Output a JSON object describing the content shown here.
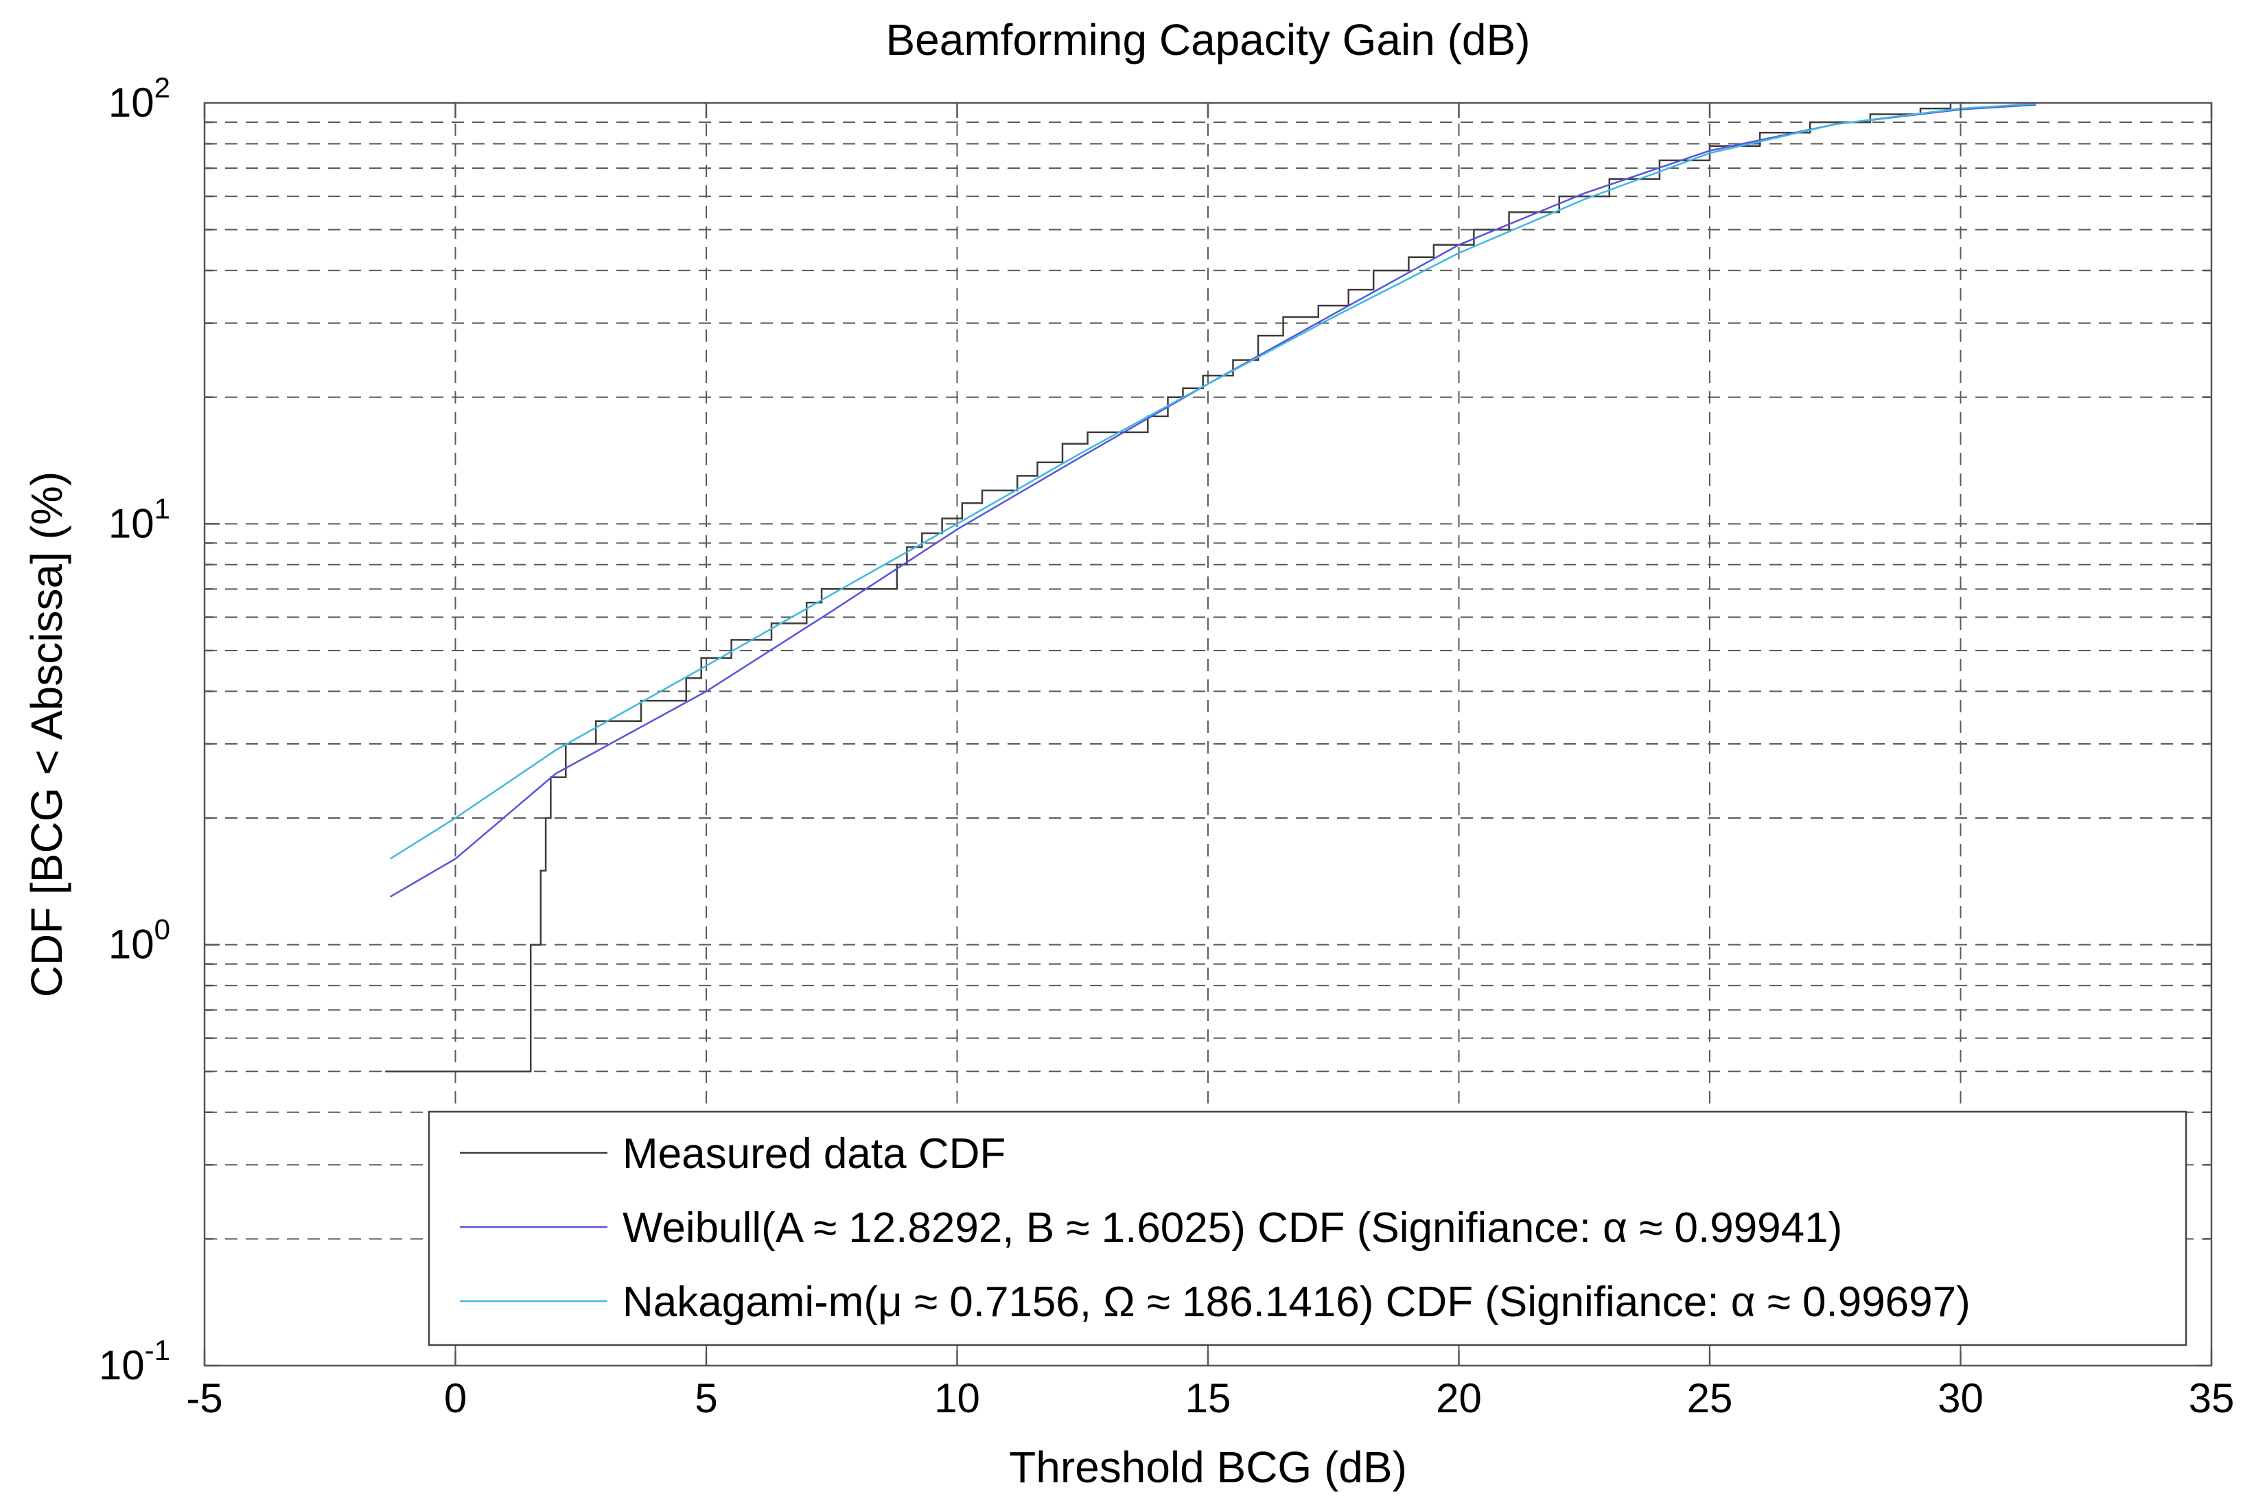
{
  "chart_data": {
    "type": "line",
    "title": "Beamforming Capacity Gain (dB)",
    "xlabel": "Threshold BCG (dB)",
    "ylabel": "CDF [BCG < Abscissa] (%)",
    "xlim": [
      -5,
      35
    ],
    "ylim": [
      0.1,
      100
    ],
    "yscale": "log",
    "grid": true,
    "xticks": [
      -5,
      0,
      5,
      10,
      15,
      20,
      25,
      30,
      35
    ],
    "xtick_labels": [
      "-5",
      "0",
      "5",
      "10",
      "15",
      "20",
      "25",
      "30",
      "35"
    ],
    "yticks": [
      {
        "value": 0.1,
        "base": "10",
        "exp": "-1"
      },
      {
        "value": 1,
        "base": "10",
        "exp": "0"
      },
      {
        "value": 10,
        "base": "10",
        "exp": "1"
      },
      {
        "value": 100,
        "base": "10",
        "exp": "2"
      }
    ],
    "legend_position": "bottom-right",
    "series": [
      {
        "name": "Measured data CDF",
        "color": "#3c3c3c",
        "step": true,
        "points": [
          [
            -1.4,
            0.5
          ],
          [
            1.5,
            0.5
          ],
          [
            1.5,
            1.0
          ],
          [
            1.7,
            1.0
          ],
          [
            1.7,
            1.5
          ],
          [
            1.8,
            1.5
          ],
          [
            1.8,
            2.0
          ],
          [
            1.9,
            2.0
          ],
          [
            1.9,
            2.5
          ],
          [
            2.2,
            2.5
          ],
          [
            2.2,
            3.0
          ],
          [
            2.8,
            3.0
          ],
          [
            2.8,
            3.4
          ],
          [
            3.7,
            3.4
          ],
          [
            3.7,
            3.8
          ],
          [
            4.6,
            3.8
          ],
          [
            4.6,
            4.3
          ],
          [
            4.9,
            4.3
          ],
          [
            4.9,
            4.8
          ],
          [
            5.5,
            4.8
          ],
          [
            5.5,
            5.3
          ],
          [
            6.3,
            5.3
          ],
          [
            6.3,
            5.8
          ],
          [
            7.0,
            5.8
          ],
          [
            7.0,
            6.5
          ],
          [
            7.3,
            6.5
          ],
          [
            7.3,
            7.0
          ],
          [
            8.8,
            7.0
          ],
          [
            8.8,
            8.0
          ],
          [
            9.0,
            8.0
          ],
          [
            9.0,
            8.8
          ],
          [
            9.3,
            8.8
          ],
          [
            9.3,
            9.5
          ],
          [
            9.7,
            9.5
          ],
          [
            9.7,
            10.3
          ],
          [
            10.1,
            10.3
          ],
          [
            10.1,
            11.2
          ],
          [
            10.5,
            11.2
          ],
          [
            10.5,
            12.0
          ],
          [
            11.2,
            12.0
          ],
          [
            11.2,
            13.0
          ],
          [
            11.6,
            13.0
          ],
          [
            11.6,
            14.0
          ],
          [
            12.1,
            14.0
          ],
          [
            12.1,
            15.5
          ],
          [
            12.6,
            15.5
          ],
          [
            12.6,
            16.5
          ],
          [
            13.8,
            16.5
          ],
          [
            13.8,
            18.0
          ],
          [
            14.2,
            18.0
          ],
          [
            14.2,
            20.0
          ],
          [
            14.5,
            20.0
          ],
          [
            14.5,
            21.0
          ],
          [
            14.9,
            21.0
          ],
          [
            14.9,
            22.5
          ],
          [
            15.5,
            22.5
          ],
          [
            15.5,
            24.5
          ],
          [
            16.0,
            24.5
          ],
          [
            16.0,
            28.0
          ],
          [
            16.5,
            28.0
          ],
          [
            16.5,
            31.0
          ],
          [
            17.2,
            31.0
          ],
          [
            17.2,
            33.0
          ],
          [
            17.8,
            33.0
          ],
          [
            17.8,
            36.0
          ],
          [
            18.3,
            36.0
          ],
          [
            18.3,
            40.0
          ],
          [
            19.0,
            40.0
          ],
          [
            19.0,
            43.0
          ],
          [
            19.5,
            43.0
          ],
          [
            19.5,
            46.0
          ],
          [
            20.3,
            46.0
          ],
          [
            20.3,
            50.0
          ],
          [
            21.0,
            50.0
          ],
          [
            21.0,
            55.0
          ],
          [
            22.0,
            55.0
          ],
          [
            22.0,
            60.0
          ],
          [
            23.0,
            60.0
          ],
          [
            23.0,
            66.0
          ],
          [
            24.0,
            66.0
          ],
          [
            24.0,
            73.0
          ],
          [
            25.0,
            73.0
          ],
          [
            25.0,
            79.0
          ],
          [
            26.0,
            79.0
          ],
          [
            26.0,
            85.0
          ],
          [
            27.0,
            85.0
          ],
          [
            27.0,
            90.0
          ],
          [
            28.2,
            90.0
          ],
          [
            28.2,
            94.0
          ],
          [
            29.2,
            94.0
          ],
          [
            29.2,
            97.0
          ],
          [
            29.8,
            97.0
          ],
          [
            29.8,
            100.0
          ],
          [
            30.2,
            100.0
          ]
        ]
      },
      {
        "name": "Weibull(A ≈ 12.8292, B ≈ 1.6025) CDF (Signifiance: α ≈ 0.99941)",
        "color": "#5555dd",
        "step": false,
        "points": [
          [
            -1.3,
            1.3
          ],
          [
            0,
            1.6
          ],
          [
            2,
            2.55
          ],
          [
            5,
            4.0
          ],
          [
            7.5,
            6.2
          ],
          [
            10,
            9.7
          ],
          [
            12.5,
            14.5
          ],
          [
            15,
            21.5
          ],
          [
            17.5,
            31.5
          ],
          [
            20,
            46.0
          ],
          [
            22.5,
            61.0
          ],
          [
            25,
            77.0
          ],
          [
            27.5,
            89.0
          ],
          [
            30,
            96.5
          ],
          [
            31.5,
            99.0
          ]
        ]
      },
      {
        "name": "Nakagami-m(μ ≈ 0.7156, Ω ≈ 186.1416) CDF (Signifiance: α ≈ 0.99697)",
        "color": "#3fb8e0",
        "step": false,
        "points": [
          [
            -1.3,
            1.6
          ],
          [
            0,
            2.0
          ],
          [
            2,
            2.9
          ],
          [
            5,
            4.6
          ],
          [
            7.5,
            6.8
          ],
          [
            10,
            10.0
          ],
          [
            12.5,
            14.8
          ],
          [
            15,
            21.5
          ],
          [
            17.5,
            31.0
          ],
          [
            20,
            44.0
          ],
          [
            22.5,
            59.0
          ],
          [
            25,
            76.0
          ],
          [
            27.5,
            89.0
          ],
          [
            30,
            97.0
          ],
          [
            31.5,
            99.5
          ]
        ]
      }
    ],
    "legend": {
      "labels": [
        "Measured data CDF",
        "Weibull(A ≈ 12.8292, B ≈ 1.6025) CDF (Signifiance: α ≈ 0.99941)",
        "Nakagami-m(μ ≈ 0.7156, Ω ≈ 186.1416) CDF (Signifiance: α ≈ 0.99697)"
      ],
      "colors": [
        "#3c3c3c",
        "#5555dd",
        "#3fb8e0"
      ]
    }
  }
}
